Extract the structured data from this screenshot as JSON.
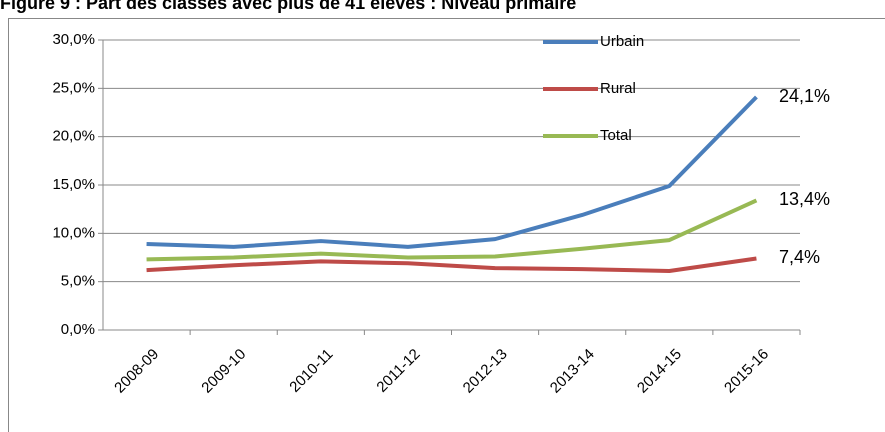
{
  "chart_data": {
    "type": "line",
    "title": "Figure 9 : Part des classes avec plus de 41 élèves : Niveau primaire",
    "categories": [
      "2008-09",
      "2009-10",
      "2010-11",
      "2011-12",
      "2012-13",
      "2013-14",
      "2014-15",
      "2015-16"
    ],
    "series": [
      {
        "name": "Urbain",
        "color": "#4a7ebb",
        "label_color": "#2e6db4",
        "values": [
          8.9,
          8.6,
          9.2,
          8.6,
          9.4,
          11.9,
          14.9,
          24.1
        ],
        "value_labels": [
          null,
          null,
          null,
          null,
          null,
          null,
          null,
          "24,1%"
        ]
      },
      {
        "name": "Rural",
        "color": "#be4b48",
        "label_color": "#b42e2b",
        "values": [
          6.2,
          6.7,
          7.1,
          6.9,
          6.4,
          6.3,
          6.1,
          7.4
        ],
        "value_labels": [
          null,
          null,
          null,
          null,
          null,
          null,
          null,
          "7,4%"
        ]
      },
      {
        "name": "Total",
        "color": "#98b954",
        "label_color": "#4f6228",
        "values": [
          7.3,
          7.5,
          7.9,
          7.5,
          7.6,
          8.4,
          9.3,
          13.4
        ],
        "value_labels": [
          null,
          null,
          null,
          null,
          null,
          null,
          null,
          "13,4%"
        ]
      }
    ],
    "ylim": [
      0,
      30
    ],
    "yticks": [
      {
        "value": 0,
        "label": "0,0%"
      },
      {
        "value": 5,
        "label": "5,0%"
      },
      {
        "value": 10,
        "label": "10,0%"
      },
      {
        "value": 15,
        "label": "15,0%"
      },
      {
        "value": 20,
        "label": "20,0%"
      },
      {
        "value": 25,
        "label": "25,0%"
      },
      {
        "value": 30,
        "label": "30,0%"
      }
    ],
    "grid": true
  }
}
